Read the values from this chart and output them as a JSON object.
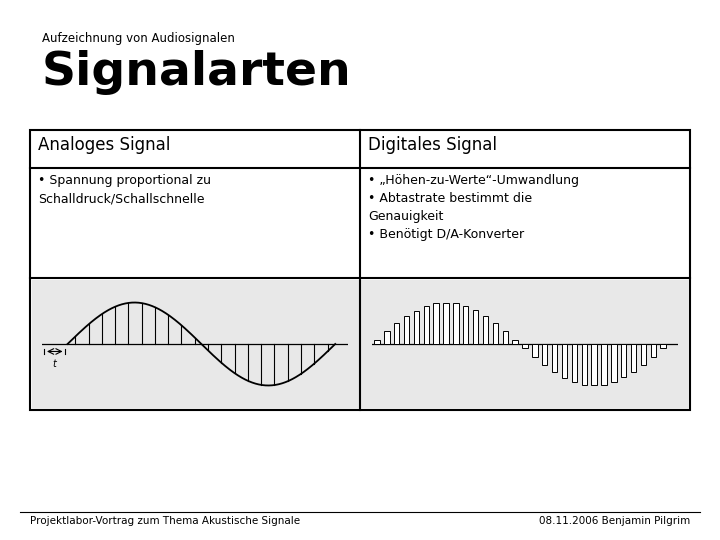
{
  "title_small": "Aufzeichnung von Audiosignalen",
  "title_large": "Signalarten",
  "col1_header": "Analoges Signal",
  "col2_header": "Digitales Signal",
  "col1_text": "• Spannung proportional zu\nSchalldruck/Schallschnelle",
  "col2_text": "• „Höhen-zu-Werte“-Umwandlung\n• Abtastrate bestimmt die\nGenauigkeit\n• Benötigt D/A-Konverter",
  "footer_left": "Projektlabor-Vortrag zum Thema Akustische Signale",
  "footer_right": "08.11.2006 Benjamin Pilgrim",
  "bg_color": "#ffffff",
  "plot_bg_color": "#e8e8e8",
  "border_color": "#000000",
  "text_color": "#000000"
}
